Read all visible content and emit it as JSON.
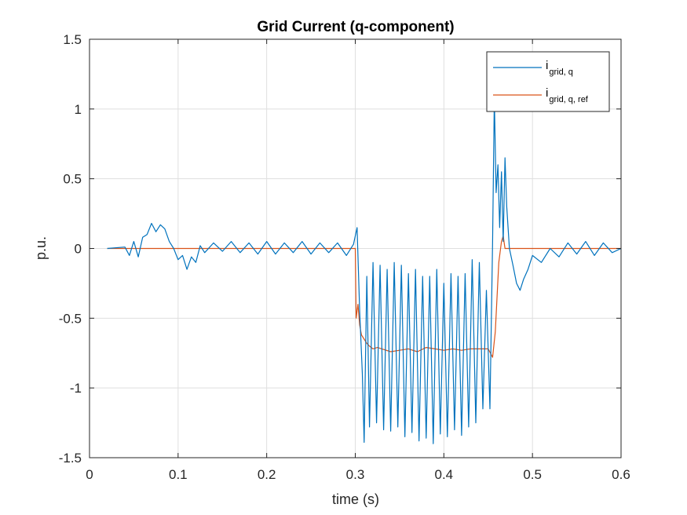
{
  "chart_data": {
    "type": "line",
    "title": "Grid Current (q-component)",
    "xlabel": "time (s)",
    "ylabel": "p.u.",
    "xlim": [
      0,
      0.6
    ],
    "ylim": [
      -1.5,
      1.5
    ],
    "xticks": [
      0,
      0.1,
      0.2,
      0.3,
      0.4,
      0.5,
      0.6
    ],
    "xtick_labels": [
      "0",
      "0.1",
      "0.2",
      "0.3",
      "0.4",
      "0.5",
      "0.6"
    ],
    "yticks": [
      -1.5,
      -1,
      -0.5,
      0,
      0.5,
      1,
      1.5
    ],
    "ytick_labels": [
      "-1.5",
      "-1",
      "-0.5",
      "0",
      "0.5",
      "1",
      "1.5"
    ],
    "grid": true,
    "legend_position": "top-right",
    "series": [
      {
        "name": "i_{grid, q}",
        "label_main": "i",
        "label_sub": "grid, q",
        "color": "#0072BD",
        "x": [
          0.02,
          0.04,
          0.045,
          0.05,
          0.055,
          0.06,
          0.065,
          0.07,
          0.075,
          0.08,
          0.085,
          0.09,
          0.095,
          0.1,
          0.105,
          0.11,
          0.115,
          0.12,
          0.125,
          0.13,
          0.14,
          0.15,
          0.16,
          0.17,
          0.18,
          0.19,
          0.2,
          0.21,
          0.22,
          0.23,
          0.24,
          0.25,
          0.26,
          0.27,
          0.28,
          0.29,
          0.298,
          0.302,
          0.305,
          0.308,
          0.31,
          0.313,
          0.316,
          0.32,
          0.324,
          0.328,
          0.332,
          0.336,
          0.34,
          0.344,
          0.348,
          0.352,
          0.356,
          0.36,
          0.364,
          0.368,
          0.372,
          0.376,
          0.38,
          0.384,
          0.388,
          0.392,
          0.396,
          0.4,
          0.404,
          0.408,
          0.412,
          0.416,
          0.42,
          0.424,
          0.428,
          0.432,
          0.436,
          0.44,
          0.444,
          0.448,
          0.452,
          0.455,
          0.457,
          0.459,
          0.461,
          0.463,
          0.465,
          0.467,
          0.469,
          0.471,
          0.474,
          0.478,
          0.482,
          0.486,
          0.49,
          0.495,
          0.5,
          0.51,
          0.52,
          0.53,
          0.54,
          0.55,
          0.56,
          0.57,
          0.58,
          0.59,
          0.6
        ],
        "y": [
          0,
          0.01,
          -0.05,
          0.05,
          -0.06,
          0.08,
          0.1,
          0.18,
          0.12,
          0.17,
          0.14,
          0.05,
          0.0,
          -0.08,
          -0.05,
          -0.15,
          -0.06,
          -0.1,
          0.02,
          -0.03,
          0.04,
          -0.02,
          0.05,
          -0.03,
          0.04,
          -0.04,
          0.05,
          -0.04,
          0.04,
          -0.03,
          0.05,
          -0.04,
          0.04,
          -0.03,
          0.04,
          -0.05,
          0.03,
          0.15,
          -0.45,
          -0.9,
          -1.39,
          -0.2,
          -1.28,
          -0.1,
          -1.25,
          -0.12,
          -1.3,
          -0.15,
          -1.31,
          -0.1,
          -1.28,
          -0.12,
          -1.35,
          -0.18,
          -1.32,
          -0.15,
          -1.38,
          -0.2,
          -1.36,
          -0.2,
          -1.4,
          -0.15,
          -1.33,
          -0.25,
          -1.35,
          -0.18,
          -1.3,
          -0.2,
          -1.34,
          -0.18,
          -1.28,
          -0.08,
          -1.25,
          -0.1,
          -1.15,
          -0.3,
          -1.15,
          0.05,
          1.08,
          0.4,
          0.6,
          0.15,
          0.55,
          0.05,
          0.65,
          0.3,
          0.0,
          -0.12,
          -0.25,
          -0.3,
          -0.22,
          -0.15,
          -0.05,
          -0.1,
          0.0,
          -0.06,
          0.04,
          -0.04,
          0.05,
          -0.05,
          0.04,
          -0.03,
          0.0
        ]
      },
      {
        "name": "i_{grid, q, ref}",
        "label_main": "i",
        "label_sub": "grid, q, ref",
        "color": "#D95319",
        "x": [
          0.02,
          0.1,
          0.2,
          0.3,
          0.301,
          0.303,
          0.305,
          0.307,
          0.31,
          0.313,
          0.316,
          0.32,
          0.325,
          0.33,
          0.34,
          0.35,
          0.36,
          0.37,
          0.38,
          0.39,
          0.4,
          0.41,
          0.42,
          0.43,
          0.44,
          0.45,
          0.455,
          0.458,
          0.462,
          0.465,
          0.467,
          0.469,
          0.475,
          0.5,
          0.6
        ],
        "y": [
          0,
          0,
          0,
          0,
          -0.5,
          -0.4,
          -0.55,
          -0.62,
          -0.65,
          -0.68,
          -0.7,
          -0.72,
          -0.71,
          -0.72,
          -0.74,
          -0.73,
          -0.72,
          -0.74,
          -0.71,
          -0.72,
          -0.73,
          -0.72,
          -0.73,
          -0.72,
          -0.72,
          -0.72,
          -0.78,
          -0.6,
          -0.1,
          0.05,
          0.09,
          0.0,
          0.0,
          0.0,
          0.0
        ]
      }
    ]
  }
}
